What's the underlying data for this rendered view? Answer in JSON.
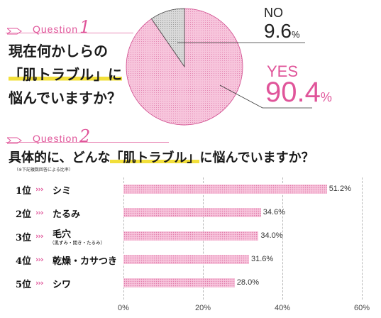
{
  "q1": {
    "label": "Question",
    "number": "1",
    "lines": [
      "現在何かしらの",
      "「肌トラブル」に",
      "悩んでいますか？"
    ],
    "highlight": "肌トラブル"
  },
  "q2": {
    "label": "Question",
    "number": "2",
    "title_before": "具体的に、どんな",
    "title_highlight": "「肌トラブル」",
    "title_after": "に悩んでいますか？",
    "note": "（※下記複数回答による比率）"
  },
  "chart_data": [
    {
      "type": "pie",
      "slices": [
        {
          "label": "YES",
          "value": 90.4,
          "display": "90.4",
          "unit": "%",
          "color": "#f7c5dc"
        },
        {
          "label": "NO",
          "value": 9.6,
          "display": "9.6",
          "unit": "%",
          "color": "#d6d6d6"
        }
      ]
    },
    {
      "type": "bar",
      "orientation": "horizontal",
      "categories": [
        "シミ",
        "たるみ",
        "毛穴",
        "乾燥・カサつき",
        "シワ"
      ],
      "ranks": [
        "1位",
        "2位",
        "3位",
        "4位",
        "5位"
      ],
      "sublabels": [
        "",
        "",
        "（黒ずみ・開き・たるみ）",
        "",
        ""
      ],
      "values": [
        51.2,
        34.6,
        34.0,
        31.6,
        28.0
      ],
      "value_labels": [
        "51.2%",
        "34.6%",
        "34.0%",
        "31.6%",
        "28.0%"
      ],
      "xlim": [
        0,
        60
      ],
      "xticks": [
        "0%",
        "20%",
        "40%",
        "60%"
      ],
      "grid": true,
      "bar_color": "#f7c5dc"
    }
  ]
}
